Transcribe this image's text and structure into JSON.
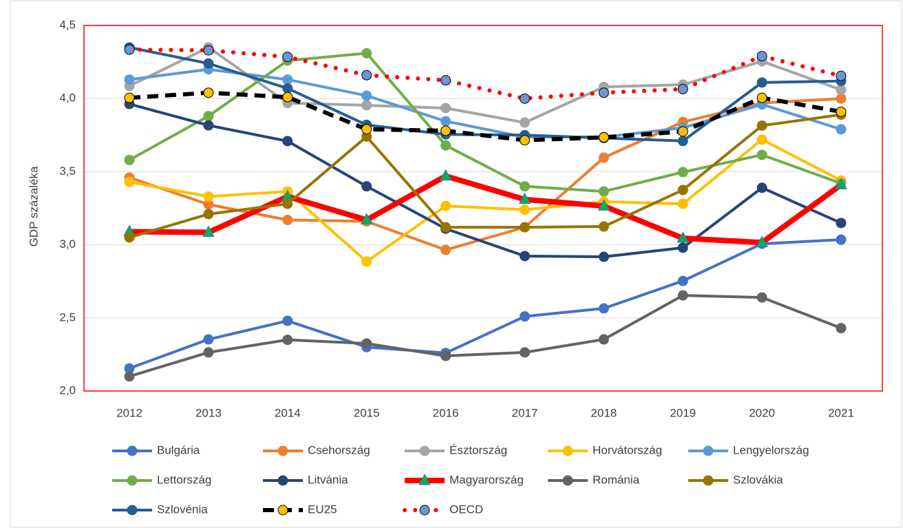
{
  "chart_data": {
    "type": "line",
    "y_label": "GDP százaléka",
    "categories": [
      "2012",
      "2013",
      "2014",
      "2015",
      "2016",
      "2017",
      "2018",
      "2019",
      "2020",
      "2021"
    ],
    "ylim": [
      2.0,
      4.5
    ],
    "yticks": [
      {
        "value": 2.0,
        "label": "2,0"
      },
      {
        "value": 2.5,
        "label": "2,5"
      },
      {
        "value": 3.0,
        "label": "3,0"
      },
      {
        "value": 3.5,
        "label": "3,5"
      },
      {
        "value": 4.0,
        "label": "4,0"
      },
      {
        "value": 4.5,
        "label": "4,5"
      }
    ],
    "grid": true,
    "legend": "bottom",
    "series": [
      {
        "name": "Bulgária",
        "color": "#4472c4",
        "marker_color": "#4472c4",
        "marker": "circle",
        "line_style": "solid",
        "values": [
          2.155,
          2.353,
          2.48,
          2.3,
          2.26,
          2.51,
          2.565,
          2.753,
          3.007,
          3.035
        ]
      },
      {
        "name": "Csehország",
        "color": "#ed7d31",
        "marker_color": "#ed7d31",
        "marker": "circle",
        "line_style": "solid",
        "values": [
          3.46,
          3.276,
          3.17,
          3.16,
          2.965,
          3.12,
          3.596,
          3.84,
          3.97,
          4.0
        ]
      },
      {
        "name": "Észtország",
        "color": "#a5a5a5",
        "marker_color": "#a5a5a5",
        "marker": "circle",
        "line_style": "solid",
        "values": [
          4.086,
          4.35,
          3.97,
          3.954,
          3.935,
          3.836,
          4.08,
          4.095,
          4.255,
          4.06
        ]
      },
      {
        "name": "Horvátország",
        "color": "#ffc000",
        "marker_color": "#ffc000",
        "marker": "circle",
        "line_style": "solid",
        "values": [
          3.43,
          3.33,
          3.365,
          2.885,
          3.266,
          3.24,
          3.295,
          3.28,
          3.72,
          3.44
        ]
      },
      {
        "name": "Lengyelország",
        "color": "#5b9bd5",
        "marker_color": "#5b9bd5",
        "marker": "circle",
        "line_style": "solid",
        "values": [
          4.13,
          4.2,
          4.13,
          4.02,
          3.845,
          3.737,
          3.737,
          3.8,
          3.96,
          3.79
        ]
      },
      {
        "name": "Lettország",
        "color": "#70ad47",
        "marker_color": "#70ad47",
        "marker": "circle",
        "line_style": "solid",
        "values": [
          3.58,
          3.88,
          4.26,
          4.31,
          3.68,
          3.4,
          3.365,
          3.497,
          3.615,
          3.42
        ]
      },
      {
        "name": "Litvánia",
        "color": "#264478",
        "marker_color": "#264478",
        "marker": "circle",
        "line_style": "solid",
        "values": [
          3.963,
          3.817,
          3.709,
          3.4,
          3.11,
          2.923,
          2.918,
          2.98,
          3.39,
          3.149
        ]
      },
      {
        "name": "Magyarország",
        "color": "#ff0000",
        "marker_color": "#00b050",
        "marker": "triangle",
        "line_style": "solid",
        "line_width": 8,
        "values": [
          3.09,
          3.085,
          3.33,
          3.17,
          3.47,
          3.31,
          3.265,
          3.045,
          3.015,
          3.41
        ]
      },
      {
        "name": "Románia",
        "color": "#636363",
        "marker_color": "#636363",
        "marker": "circle",
        "line_style": "solid",
        "values": [
          2.1,
          2.264,
          2.35,
          2.325,
          2.24,
          2.264,
          2.353,
          2.654,
          2.64,
          2.43
        ]
      },
      {
        "name": "Szlovákia",
        "color": "#997300",
        "marker_color": "#997300",
        "marker": "circle",
        "line_style": "solid",
        "values": [
          3.05,
          3.21,
          3.28,
          3.74,
          3.12,
          3.12,
          3.125,
          3.375,
          3.815,
          3.89
        ]
      },
      {
        "name": "Szlovénia",
        "color": "#255e91",
        "marker_color": "#255e91",
        "marker": "circle",
        "line_style": "solid",
        "values": [
          4.35,
          4.24,
          4.07,
          3.82,
          3.755,
          3.75,
          3.73,
          3.71,
          4.11,
          4.12
        ]
      },
      {
        "name": "EU25",
        "color": "#000000",
        "marker_color": "#ffc000",
        "marker": "circle",
        "line_style": "dashed",
        "line_width": 6,
        "values": [
          4.005,
          4.04,
          4.01,
          3.79,
          3.78,
          3.715,
          3.735,
          3.775,
          4.005,
          3.91
        ]
      },
      {
        "name": "OECD",
        "color": "#ff0000",
        "marker_color": "#6f94d6",
        "marker": "circle",
        "line_style": "dotted",
        "line_width": 6,
        "values": [
          4.335,
          4.33,
          4.285,
          4.16,
          4.125,
          4.0,
          4.04,
          4.065,
          4.29,
          4.155
        ]
      }
    ]
  }
}
